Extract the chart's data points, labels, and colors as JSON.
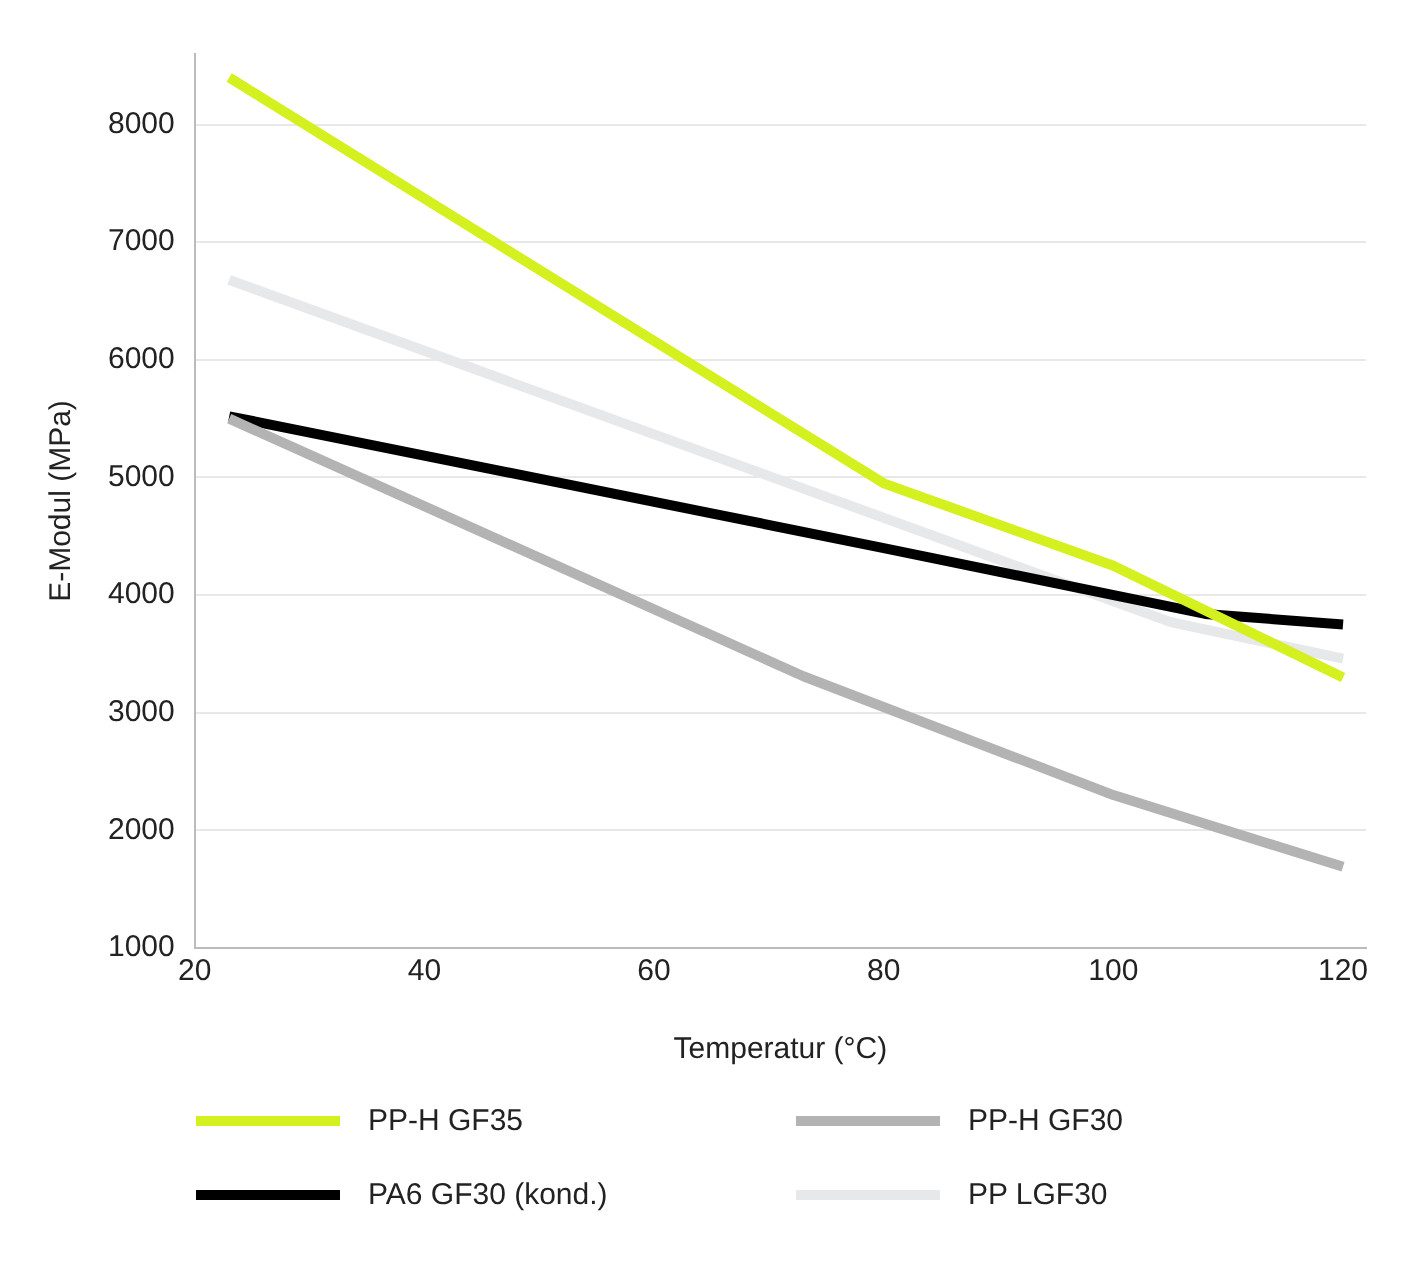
{
  "chart_data": {
    "type": "line",
    "xlabel": "Temperatur (°C)",
    "ylabel": "E-Modul (MPa)",
    "xlim": [
      20,
      122
    ],
    "xticks": [
      20,
      40,
      60,
      80,
      100,
      120
    ],
    "ylim": [
      1000,
      8600
    ],
    "yticks": [
      1000,
      2000,
      3000,
      4000,
      5000,
      6000,
      7000,
      8000
    ],
    "grid": "y",
    "legend": "bottom",
    "marker": "none",
    "line_style": "solid",
    "series": [
      {
        "name": "PP-H GF35",
        "color": "#d4f01e",
        "x": [
          23,
          80,
          100,
          120
        ],
        "values": [
          8400,
          4950,
          4250,
          3300
        ]
      },
      {
        "name": "PP-H GF30",
        "color": "#b3b3b3",
        "x": [
          23,
          73,
          100,
          120
        ],
        "values": [
          5500,
          3310,
          2300,
          1690
        ]
      },
      {
        "name": "PA6 GF30 (kond.)",
        "color": "#000000",
        "x": [
          23,
          80,
          108,
          120
        ],
        "values": [
          5520,
          4400,
          3840,
          3750
        ]
      },
      {
        "name": "PP LGF30",
        "color": "#e6e8ea",
        "x": [
          23,
          105,
          120
        ],
        "values": [
          6680,
          3770,
          3460
        ]
      }
    ]
  }
}
